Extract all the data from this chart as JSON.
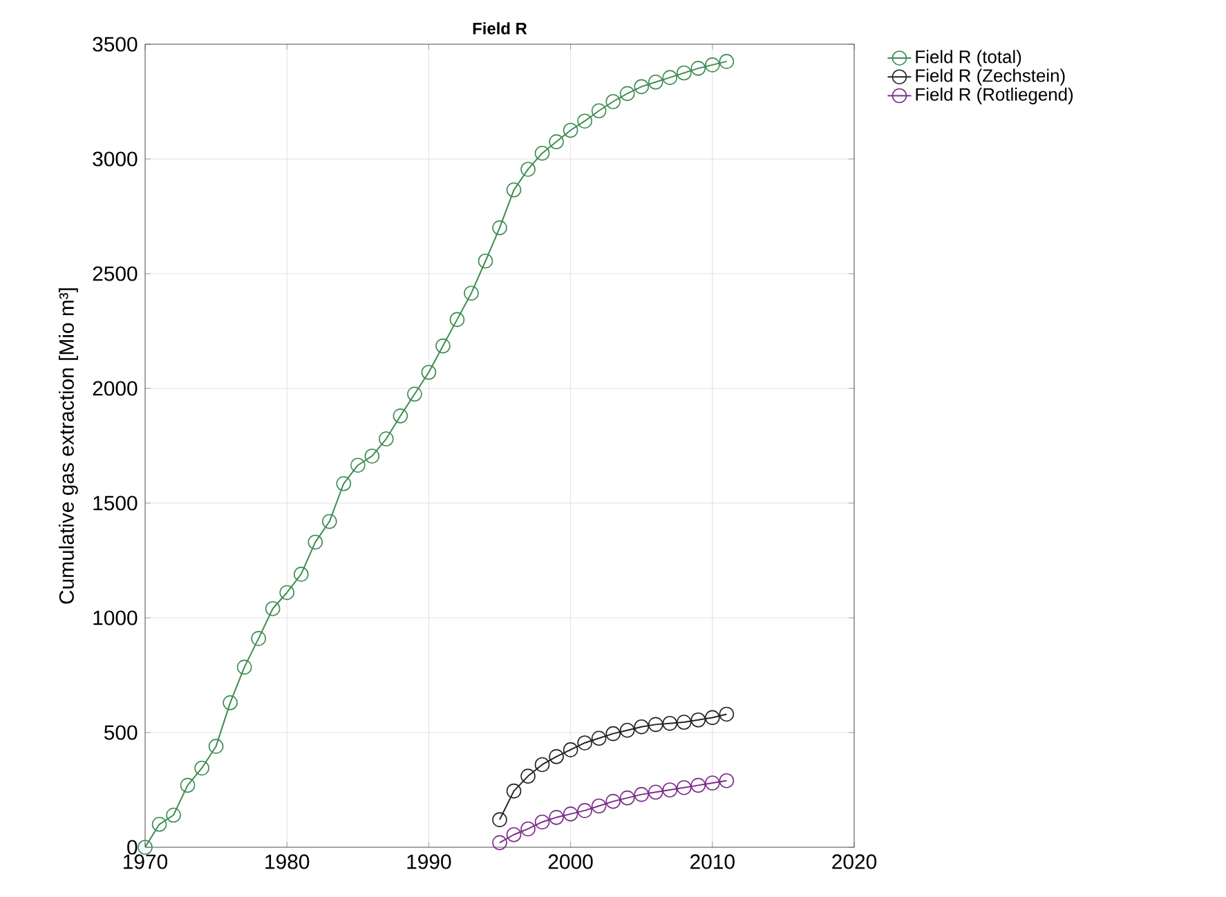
{
  "chart_data": {
    "type": "line",
    "title": "Field R",
    "ylabel": "Cumulative gas extraction [Mio m³]",
    "xlim": [
      1970,
      2020
    ],
    "xticks": [
      1970,
      1980,
      1990,
      2000,
      2010,
      2020
    ],
    "ylim": [
      0,
      3500
    ],
    "yticks": [
      0,
      500,
      1000,
      1500,
      2000,
      2500,
      3000,
      3500
    ],
    "grid": true,
    "legend": "top right",
    "marker": "circle",
    "line_style": "solid",
    "series": [
      {
        "name": "Field R (total)",
        "color": "#3c8c50",
        "x": [
          1970,
          1971,
          1972,
          1973,
          1974,
          1975,
          1976,
          1977,
          1978,
          1979,
          1980,
          1981,
          1982,
          1983,
          1984,
          1985,
          1986,
          1987,
          1988,
          1989,
          1990,
          1991,
          1992,
          1993,
          1994,
          1995,
          1996,
          1997,
          1998,
          1999,
          2000,
          2001,
          2002,
          2003,
          2004,
          2005,
          2006,
          2007,
          2008,
          2009,
          2010,
          2011
        ],
        "values": [
          0,
          100,
          140,
          270,
          345,
          440,
          630,
          785,
          910,
          1040,
          1110,
          1190,
          1330,
          1420,
          1585,
          1665,
          1705,
          1780,
          1880,
          1975,
          2070,
          2185,
          2300,
          2415,
          2555,
          2700,
          2865,
          2955,
          3025,
          3075,
          3125,
          3165,
          3210,
          3250,
          3285,
          3315,
          3335,
          3355,
          3375,
          3395,
          3410,
          3425
        ]
      },
      {
        "name": "Field R (Zechstein)",
        "color": "#222222",
        "x": [
          1995,
          1996,
          1997,
          1998,
          1999,
          2000,
          2001,
          2002,
          2003,
          2004,
          2005,
          2006,
          2007,
          2008,
          2009,
          2010,
          2011
        ],
        "values": [
          120,
          245,
          310,
          360,
          395,
          425,
          455,
          475,
          495,
          510,
          525,
          535,
          540,
          545,
          555,
          565,
          580
        ]
      },
      {
        "name": "Field R (Rotliegend)",
        "color": "#7b2a8a",
        "x": [
          1995,
          1996,
          1997,
          1998,
          1999,
          2000,
          2001,
          2002,
          2003,
          2004,
          2005,
          2006,
          2007,
          2008,
          2009,
          2010,
          2011
        ],
        "values": [
          20,
          55,
          80,
          110,
          130,
          145,
          160,
          180,
          200,
          215,
          230,
          240,
          250,
          260,
          270,
          280,
          290
        ]
      }
    ]
  }
}
